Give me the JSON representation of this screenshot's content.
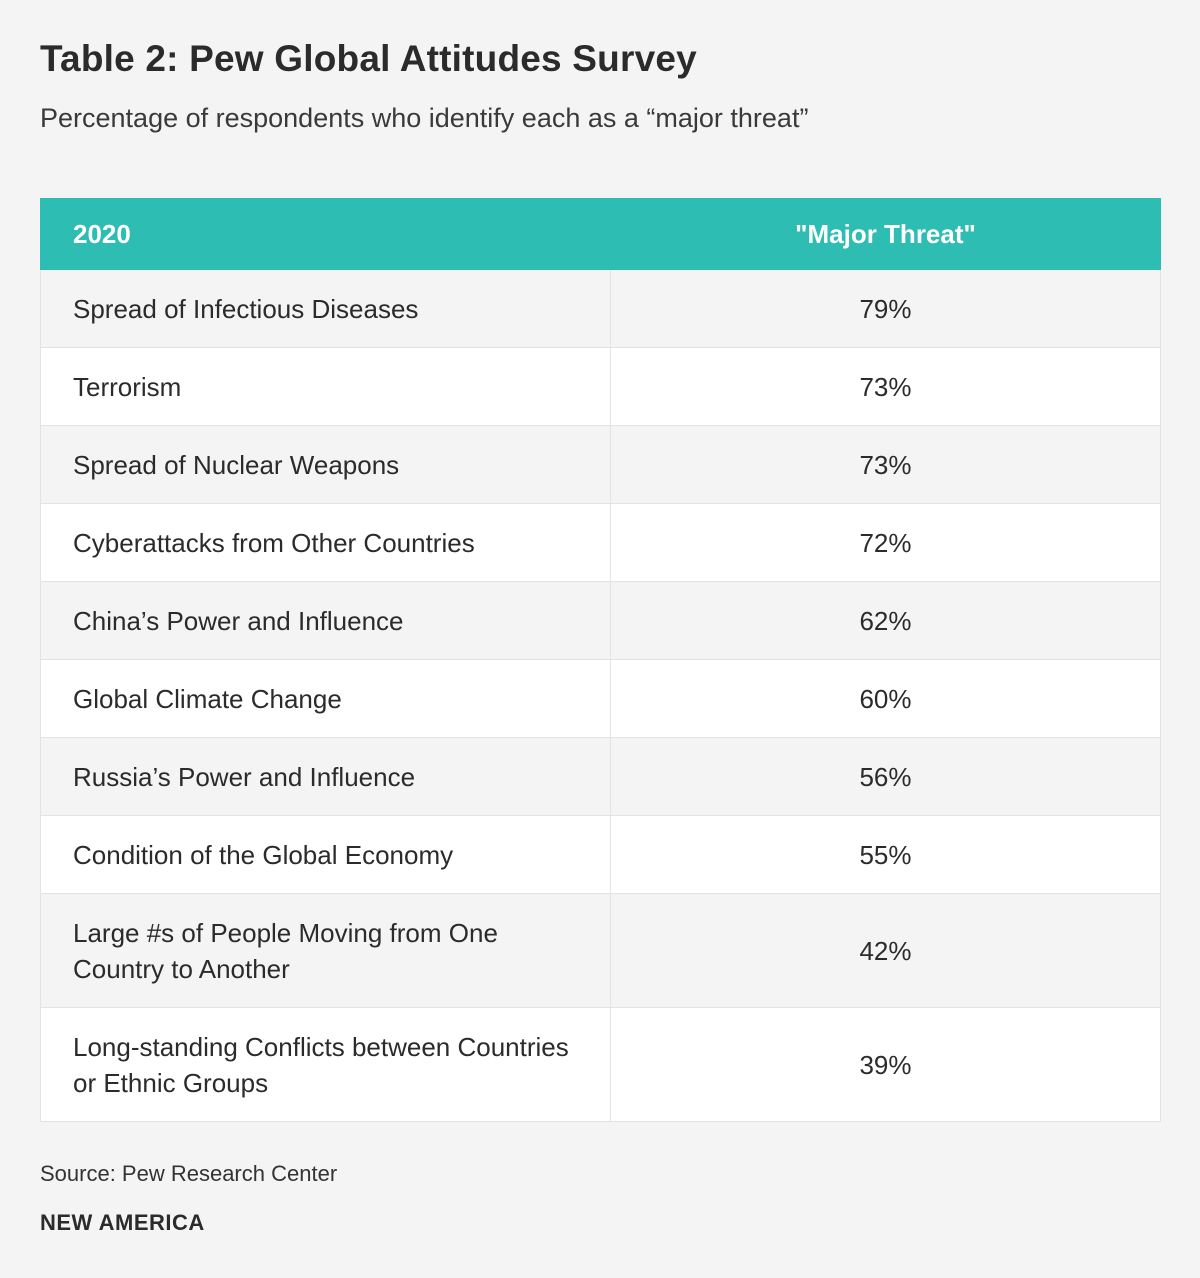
{
  "chart_data": {
    "type": "table",
    "title": "Table 2: Pew Global Attitudes Survey",
    "subtitle": "Percentage of respondents who identify each as a “major threat”",
    "columns": [
      "2020",
      "\"Major Threat\""
    ],
    "rows": [
      {
        "label": "Spread of Infectious Diseases",
        "value": "79%"
      },
      {
        "label": "Terrorism",
        "value": "73%"
      },
      {
        "label": "Spread of Nuclear Weapons",
        "value": "73%"
      },
      {
        "label": "Cyberattacks from Other Countries",
        "value": "72%"
      },
      {
        "label": "China’s Power and Influence",
        "value": "62%"
      },
      {
        "label": "Global Climate Change",
        "value": "60%"
      },
      {
        "label": "Russia’s Power and Influence",
        "value": "56%"
      },
      {
        "label": "Condition of the Global Economy",
        "value": "55%"
      },
      {
        "label": "Large #s of People Moving from One Country to Another",
        "value": "42%"
      },
      {
        "label": "Long-standing Conflicts between Countries or Ethnic Groups",
        "value": "39%"
      }
    ],
    "values": [
      79,
      73,
      73,
      72,
      62,
      60,
      56,
      55,
      42,
      39
    ],
    "unit": "%",
    "source": "Source: Pew Research Center",
    "brand": "NEW AMERICA"
  },
  "colors": {
    "header_bg": "#2ebdb2",
    "header_text": "#ffffff",
    "row_alt_bg": "#f4f4f4",
    "row_bg": "#ffffff",
    "page_bg": "#f4f4f4"
  }
}
